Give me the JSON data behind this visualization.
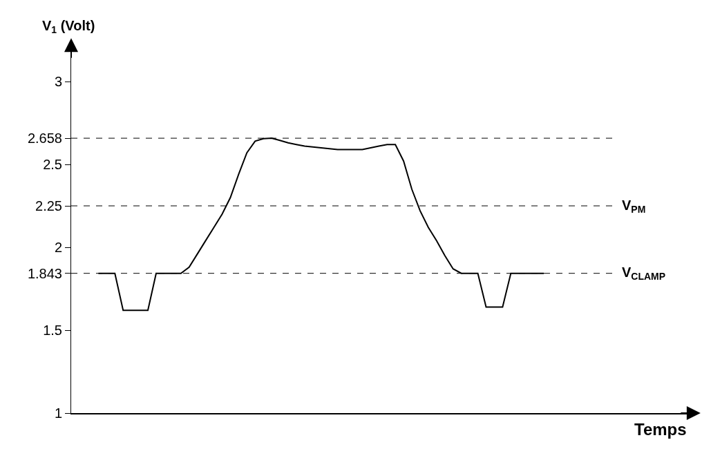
{
  "chart_data": {
    "type": "line",
    "ylabel": "V$_{1}$ (Volt)",
    "annotations": [
      "Temps"
    ],
    "categories": [
      null,
      null,
      null,
      null,
      null,
      null,
      null,
      null,
      null,
      null,
      null,
      null,
      null,
      null,
      null,
      null,
      null,
      null,
      null,
      null,
      null,
      null,
      null,
      null,
      null,
      null,
      null,
      null,
      null,
      null,
      null,
      null,
      null,
      null,
      null,
      null,
      null,
      null,
      null,
      null,
      null,
      null,
      null,
      null,
      null,
      null,
      null,
      null,
      null,
      null,
      null,
      null,
      null,
      null,
      null
    ],
    "series": [
      {
        "color": "#000000",
        "values": [
          1.843,
          1.843,
          1.843,
          1.62,
          1.62,
          1.62,
          1.62,
          1.843,
          1.843,
          1.843,
          1.843,
          1.88,
          1.96,
          2.04,
          2.12,
          2.2,
          2.3,
          2.44,
          2.57,
          2.64,
          2.655,
          2.658,
          2.645,
          2.63,
          2.62,
          2.61,
          2.605,
          2.6,
          2.595,
          2.59,
          2.59,
          2.59,
          2.59,
          2.6,
          2.61,
          2.62,
          2.62,
          2.52,
          2.35,
          2.22,
          2.12,
          2.04,
          1.95,
          1.87,
          1.843,
          1.843,
          1.843,
          1.64,
          1.64,
          1.64,
          1.843,
          1.843,
          1.843,
          1.843,
          1.843
        ]
      }
    ],
    "ylim": [
      1,
      3.25
    ],
    "yticks": [
      1,
      1.5,
      1.843,
      2,
      2.25,
      2.5,
      2.658,
      3
    ],
    "ref_lines": [
      {
        "axis": "y",
        "value": 2.658,
        "label": null,
        "line_style": "dashed",
        "color": "#000000"
      },
      {
        "axis": "y",
        "value": 2.25,
        "label": "V$_{PM}$",
        "line_style": "dashed",
        "color": "#000000"
      },
      {
        "axis": "y",
        "value": 1.843,
        "label": "V$_{CLAMP}$",
        "line_style": "dashed",
        "color": "#000000"
      }
    ],
    "grid": false,
    "tick_labels": "y",
    "marker": "none",
    "line_style": "solid"
  }
}
